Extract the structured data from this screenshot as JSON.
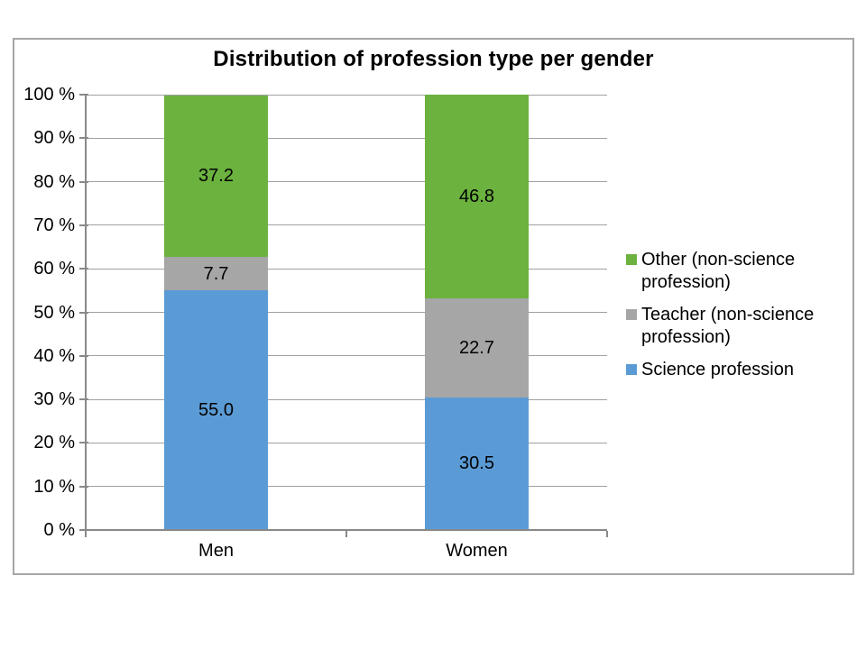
{
  "title": "Distribution of profession type per gender",
  "chart_data": {
    "type": "bar",
    "stacked": true,
    "orientation": "vertical",
    "categories": [
      "Men",
      "Women"
    ],
    "series": [
      {
        "name": "Science profession",
        "color": "#5B9BD5",
        "values": [
          55.0,
          30.5
        ]
      },
      {
        "name": "Teacher (non-science profession)",
        "color": "#A6A6A6",
        "values": [
          7.7,
          22.7
        ]
      },
      {
        "name": "Other (non-science profession)",
        "color": "#6BB23E",
        "values": [
          37.2,
          46.8
        ]
      }
    ],
    "ylim": [
      0,
      100
    ],
    "ytick_labels": [
      "0 %",
      "10 %",
      "20 %",
      "30 %",
      "40 %",
      "50 %",
      "60 %",
      "70 %",
      "80 %",
      "90 %",
      "100 %"
    ],
    "xlabel": "",
    "ylabel": "",
    "grid": true,
    "legend_position": "right"
  },
  "legend": {
    "items": [
      {
        "label": "Other (non-science profession)",
        "color": "#6BB23E"
      },
      {
        "label": "Teacher (non-science profession)",
        "color": "#A6A6A6"
      },
      {
        "label": "Science profession",
        "color": "#5B9BD5"
      }
    ]
  },
  "colors": {
    "science_blue": "#5B9BD5",
    "teacher_gray": "#A6A6A6",
    "other_green": "#6BB23E",
    "gridline": "#A0A0A0",
    "axis": "#898989",
    "frame_border": "#A6A6A6",
    "text": "#000000"
  }
}
